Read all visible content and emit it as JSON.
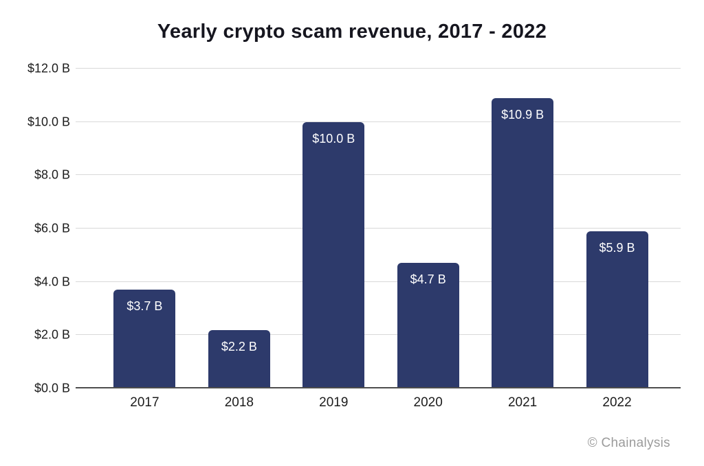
{
  "chart_data": {
    "type": "bar",
    "title": "Yearly crypto scam revenue, 2017 - 2022",
    "categories": [
      "2017",
      "2018",
      "2019",
      "2020",
      "2021",
      "2022"
    ],
    "values": [
      3.7,
      2.2,
      10.0,
      4.7,
      10.9,
      5.9
    ],
    "bar_labels": [
      "$3.7 B",
      "$2.2 B",
      "$10.0 B",
      "$4.7 B",
      "$10.9 B",
      "$5.9 B"
    ],
    "xlabel": "",
    "ylabel": "",
    "ylim": [
      0,
      12
    ],
    "ytick_interval": 2,
    "ytick_labels": [
      "$0.0 B",
      "$2.0 B",
      "$4.0 B",
      "$6.0 B",
      "$8.0 B",
      "$10.0 B",
      "$12.0 B"
    ],
    "grid": true,
    "legend": "none",
    "bar_color": "#2d3a6b",
    "bar_label_color": "#ffffff",
    "gridline_color": "#d8d8d8",
    "axis_line_color": "#4d4d4d",
    "watermark": "© Chainalysis"
  }
}
